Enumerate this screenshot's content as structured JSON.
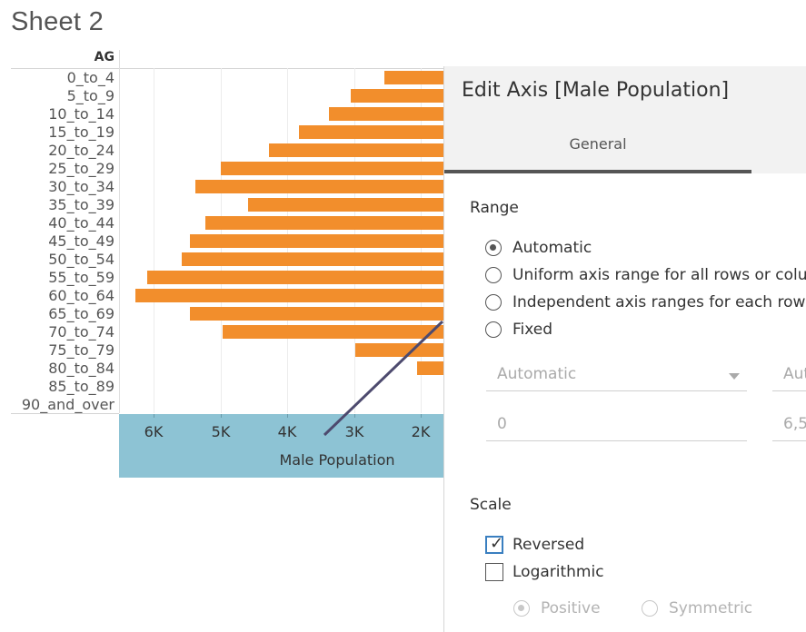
{
  "sheet": {
    "title": "Sheet 2"
  },
  "table": {
    "row_header": "AG",
    "rows": [
      "0_to_4",
      "5_to_9",
      "10_to_14",
      "15_to_19",
      "20_to_24",
      "25_to_29",
      "30_to_34",
      "35_to_39",
      "40_to_44",
      "45_to_49",
      "50_to_54",
      "55_to_59",
      "60_to_64",
      "65_to_69",
      "70_to_74",
      "75_to_79",
      "80_to_84",
      "85_to_89",
      "90_and_over"
    ]
  },
  "chart_data": {
    "type": "bar",
    "orientation": "horizontal",
    "axis_reversed": true,
    "categories": [
      "0_to_4",
      "5_to_9",
      "10_to_14",
      "15_to_19",
      "20_to_24",
      "25_to_29",
      "30_to_34",
      "35_to_39",
      "40_to_44",
      "45_to_49",
      "50_to_54",
      "55_to_59",
      "60_to_64",
      "65_to_69",
      "70_to_74",
      "75_to_79",
      "80_to_84",
      "85_to_89",
      "90_and_over"
    ],
    "values": [
      2540,
      3050,
      3380,
      3820,
      4270,
      5000,
      5370,
      4590,
      5220,
      5460,
      5580,
      6100,
      6270,
      5460,
      4970,
      2980,
      2050,
      null,
      null
    ],
    "xlabel": "Male Population",
    "ticks": [
      "6K",
      "5K",
      "4K",
      "3K",
      "2K"
    ],
    "bar_color": "#f28e2c",
    "axis_band_color": "#8dc3d4"
  },
  "dialog": {
    "title": "Edit Axis [Male Population]",
    "tab": "General",
    "range": {
      "label": "Range",
      "options": [
        {
          "label": "Automatic",
          "checked": true
        },
        {
          "label": "Uniform axis range for all rows or colur",
          "checked": false
        },
        {
          "label": "Independent axis ranges for each row o",
          "checked": false
        },
        {
          "label": "Fixed",
          "checked": false
        }
      ],
      "start_dropdown": "Automatic",
      "end_dropdown": "Aut",
      "start_value": "0",
      "end_value": "6,5"
    },
    "scale": {
      "label": "Scale",
      "reversed": {
        "label": "Reversed",
        "checked": true
      },
      "logarithmic": {
        "label": "Logarithmic",
        "checked": false
      },
      "log_options": [
        {
          "label": "Positive",
          "checked": true
        },
        {
          "label": "Symmetric",
          "checked": false
        }
      ]
    }
  }
}
